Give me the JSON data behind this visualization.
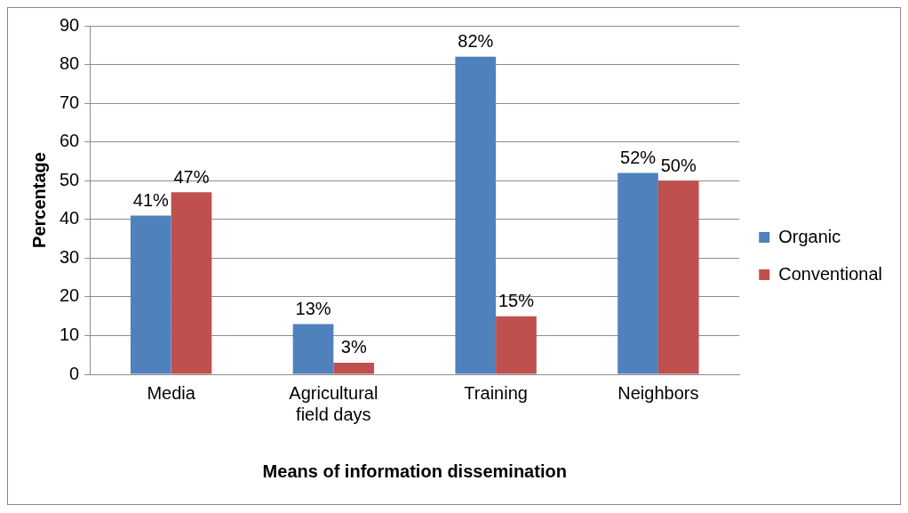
{
  "chart_data": {
    "type": "bar",
    "xlabel": "Means of information dissemination",
    "ylabel": "Percentage",
    "categories": [
      "Media",
      "Agricultural field days",
      "Training",
      "Neighbors"
    ],
    "series": [
      {
        "name": "Organic",
        "color": "#4f81bd",
        "values": [
          41,
          13,
          82,
          52
        ],
        "value_labels": [
          "41%",
          "13%",
          "82%",
          "52%"
        ]
      },
      {
        "name": "Conventional",
        "color": "#c0504d",
        "values": [
          47,
          3,
          15,
          50
        ],
        "value_labels": [
          "47%",
          "3%",
          "15%",
          "50%"
        ]
      }
    ],
    "ylim": [
      0,
      90
    ],
    "yticks": [
      0,
      10,
      20,
      30,
      40,
      50,
      60,
      70,
      80,
      90
    ],
    "grid": "y",
    "legend": "right"
  }
}
